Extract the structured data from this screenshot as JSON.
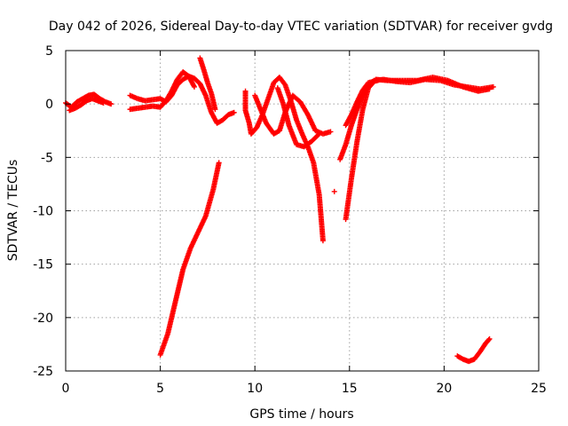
{
  "chart_data": {
    "type": "scatter",
    "title": "Day 042 of 2026, Sidereal Day-to-day VTEC variation (SDTVAR) for receiver gvdg",
    "xlabel": "GPS time / hours",
    "ylabel": "SDTVAR / TECUs",
    "xlim": [
      0,
      25
    ],
    "ylim": [
      -25,
      5
    ],
    "xticks": [
      "0",
      "5",
      "10",
      "15",
      "20",
      "25"
    ],
    "yticks": [
      "5",
      "0",
      "-5",
      "-10",
      "-15",
      "-20",
      "-25"
    ],
    "grid": true,
    "marker": "plus",
    "color": "#ff0000",
    "series": [
      {
        "name": "arc-1",
        "points": [
          [
            0.0,
            0.1
          ],
          [
            0.3,
            -0.3
          ],
          [
            0.6,
            0.2
          ],
          [
            0.9,
            0.5
          ],
          [
            1.2,
            0.8
          ],
          [
            1.5,
            0.9
          ],
          [
            1.8,
            0.5
          ],
          [
            2.1,
            0.2
          ],
          [
            2.4,
            0.0
          ]
        ]
      },
      {
        "name": "arc-2",
        "points": [
          [
            0.2,
            -0.6
          ],
          [
            0.5,
            -0.4
          ],
          [
            0.8,
            -0.1
          ],
          [
            1.1,
            0.3
          ],
          [
            1.4,
            0.5
          ],
          [
            1.7,
            0.3
          ],
          [
            2.0,
            0.1
          ]
        ]
      },
      {
        "name": "arc-3",
        "points": [
          [
            3.4,
            0.8
          ],
          [
            3.8,
            0.5
          ],
          [
            4.2,
            0.3
          ],
          [
            4.6,
            0.4
          ],
          [
            5.0,
            0.5
          ],
          [
            5.3,
            0.2
          ],
          [
            5.6,
            0.8
          ],
          [
            5.9,
            1.8
          ],
          [
            6.2,
            2.3
          ],
          [
            6.5,
            2.6
          ],
          [
            6.8,
            2.4
          ],
          [
            7.1,
            1.9
          ],
          [
            7.4,
            0.8
          ],
          [
            7.7,
            -0.8
          ],
          [
            8.0,
            -1.8
          ],
          [
            8.3,
            -1.5
          ],
          [
            8.6,
            -1.0
          ],
          [
            8.9,
            -0.8
          ]
        ]
      },
      {
        "name": "arc-4",
        "points": [
          [
            3.4,
            -0.5
          ],
          [
            3.8,
            -0.4
          ],
          [
            4.2,
            -0.3
          ],
          [
            4.6,
            -0.2
          ],
          [
            5.0,
            -0.3
          ],
          [
            5.3,
            0.3
          ],
          [
            5.6,
            1.2
          ],
          [
            5.9,
            2.3
          ],
          [
            6.2,
            3.0
          ],
          [
            6.5,
            2.6
          ],
          [
            6.8,
            1.6
          ]
        ]
      },
      {
        "name": "arc-5",
        "points": [
          [
            7.1,
            4.3
          ],
          [
            7.3,
            3.2
          ],
          [
            7.5,
            2.0
          ],
          [
            7.7,
            1.0
          ],
          [
            7.9,
            -0.5
          ]
        ]
      },
      {
        "name": "arc-6",
        "points": [
          [
            5.0,
            -23.5
          ],
          [
            5.4,
            -21.5
          ],
          [
            5.8,
            -18.5
          ],
          [
            6.2,
            -15.5
          ],
          [
            6.6,
            -13.5
          ],
          [
            7.0,
            -12.0
          ],
          [
            7.4,
            -10.5
          ],
          [
            7.8,
            -8.0
          ],
          [
            8.1,
            -5.5
          ]
        ]
      },
      {
        "name": "arc-7",
        "points": [
          [
            9.5,
            1.2
          ],
          [
            9.5,
            0.3
          ],
          [
            9.5,
            -0.6
          ],
          [
            9.7,
            -1.8
          ],
          [
            9.8,
            -2.8
          ],
          [
            10.1,
            -2.2
          ],
          [
            10.4,
            -1.0
          ],
          [
            10.7,
            0.5
          ],
          [
            11.0,
            2.0
          ],
          [
            11.3,
            2.5
          ],
          [
            11.6,
            1.8
          ],
          [
            11.9,
            0.3
          ],
          [
            12.2,
            -1.5
          ],
          [
            12.5,
            -2.8
          ],
          [
            12.8,
            -4.0
          ],
          [
            13.1,
            -5.5
          ],
          [
            13.4,
            -8.5
          ],
          [
            13.6,
            -12.8
          ]
        ]
      },
      {
        "name": "arc-8",
        "points": [
          [
            10.0,
            0.8
          ],
          [
            10.3,
            -0.5
          ],
          [
            10.6,
            -1.8
          ],
          [
            11.0,
            -2.8
          ],
          [
            11.3,
            -2.5
          ],
          [
            11.6,
            -0.8
          ],
          [
            12.0,
            0.8
          ],
          [
            12.4,
            0.2
          ],
          [
            12.8,
            -1.0
          ],
          [
            13.2,
            -2.5
          ],
          [
            13.6,
            -2.8
          ],
          [
            14.0,
            -2.6
          ]
        ]
      },
      {
        "name": "arc-9",
        "points": [
          [
            11.2,
            1.5
          ],
          [
            11.5,
            0.0
          ],
          [
            11.8,
            -2.0
          ],
          [
            12.2,
            -3.8
          ],
          [
            12.6,
            -4.0
          ],
          [
            13.0,
            -3.5
          ],
          [
            13.4,
            -2.8
          ]
        ]
      },
      {
        "name": "arc-10",
        "points": [
          [
            14.2,
            -8.2
          ]
        ]
      },
      {
        "name": "arc-11",
        "points": [
          [
            14.5,
            -5.2
          ],
          [
            14.8,
            -3.8
          ],
          [
            15.1,
            -2.0
          ],
          [
            15.4,
            -0.5
          ],
          [
            15.7,
            0.8
          ],
          [
            16.0,
            1.8
          ],
          [
            16.3,
            2.2
          ],
          [
            16.8,
            2.3
          ],
          [
            17.5,
            2.1
          ],
          [
            18.2,
            2.0
          ],
          [
            19.0,
            2.3
          ],
          [
            19.8,
            2.2
          ],
          [
            20.5,
            1.8
          ],
          [
            21.2,
            1.6
          ],
          [
            21.9,
            1.4
          ],
          [
            22.6,
            1.6
          ]
        ]
      },
      {
        "name": "arc-12",
        "points": [
          [
            14.8,
            -10.8
          ],
          [
            15.1,
            -7.0
          ],
          [
            15.4,
            -3.5
          ],
          [
            15.7,
            -0.5
          ],
          [
            16.0,
            1.5
          ],
          [
            16.4,
            2.3
          ],
          [
            17.0,
            2.2
          ],
          [
            17.8,
            2.2
          ],
          [
            18.6,
            2.2
          ],
          [
            19.4,
            2.5
          ],
          [
            20.2,
            2.2
          ],
          [
            21.0,
            1.6
          ],
          [
            21.8,
            1.2
          ],
          [
            22.4,
            1.4
          ]
        ]
      },
      {
        "name": "arc-13",
        "points": [
          [
            14.8,
            -2.0
          ],
          [
            15.1,
            -1.0
          ],
          [
            15.4,
            0.2
          ],
          [
            15.7,
            1.3
          ],
          [
            16.0,
            2.0
          ],
          [
            16.5,
            2.2
          ]
        ]
      },
      {
        "name": "arc-14",
        "points": [
          [
            20.7,
            -23.6
          ],
          [
            21.0,
            -23.9
          ],
          [
            21.3,
            -24.1
          ],
          [
            21.6,
            -23.9
          ],
          [
            21.9,
            -23.2
          ],
          [
            22.2,
            -22.4
          ],
          [
            22.4,
            -22.0
          ]
        ]
      }
    ]
  }
}
